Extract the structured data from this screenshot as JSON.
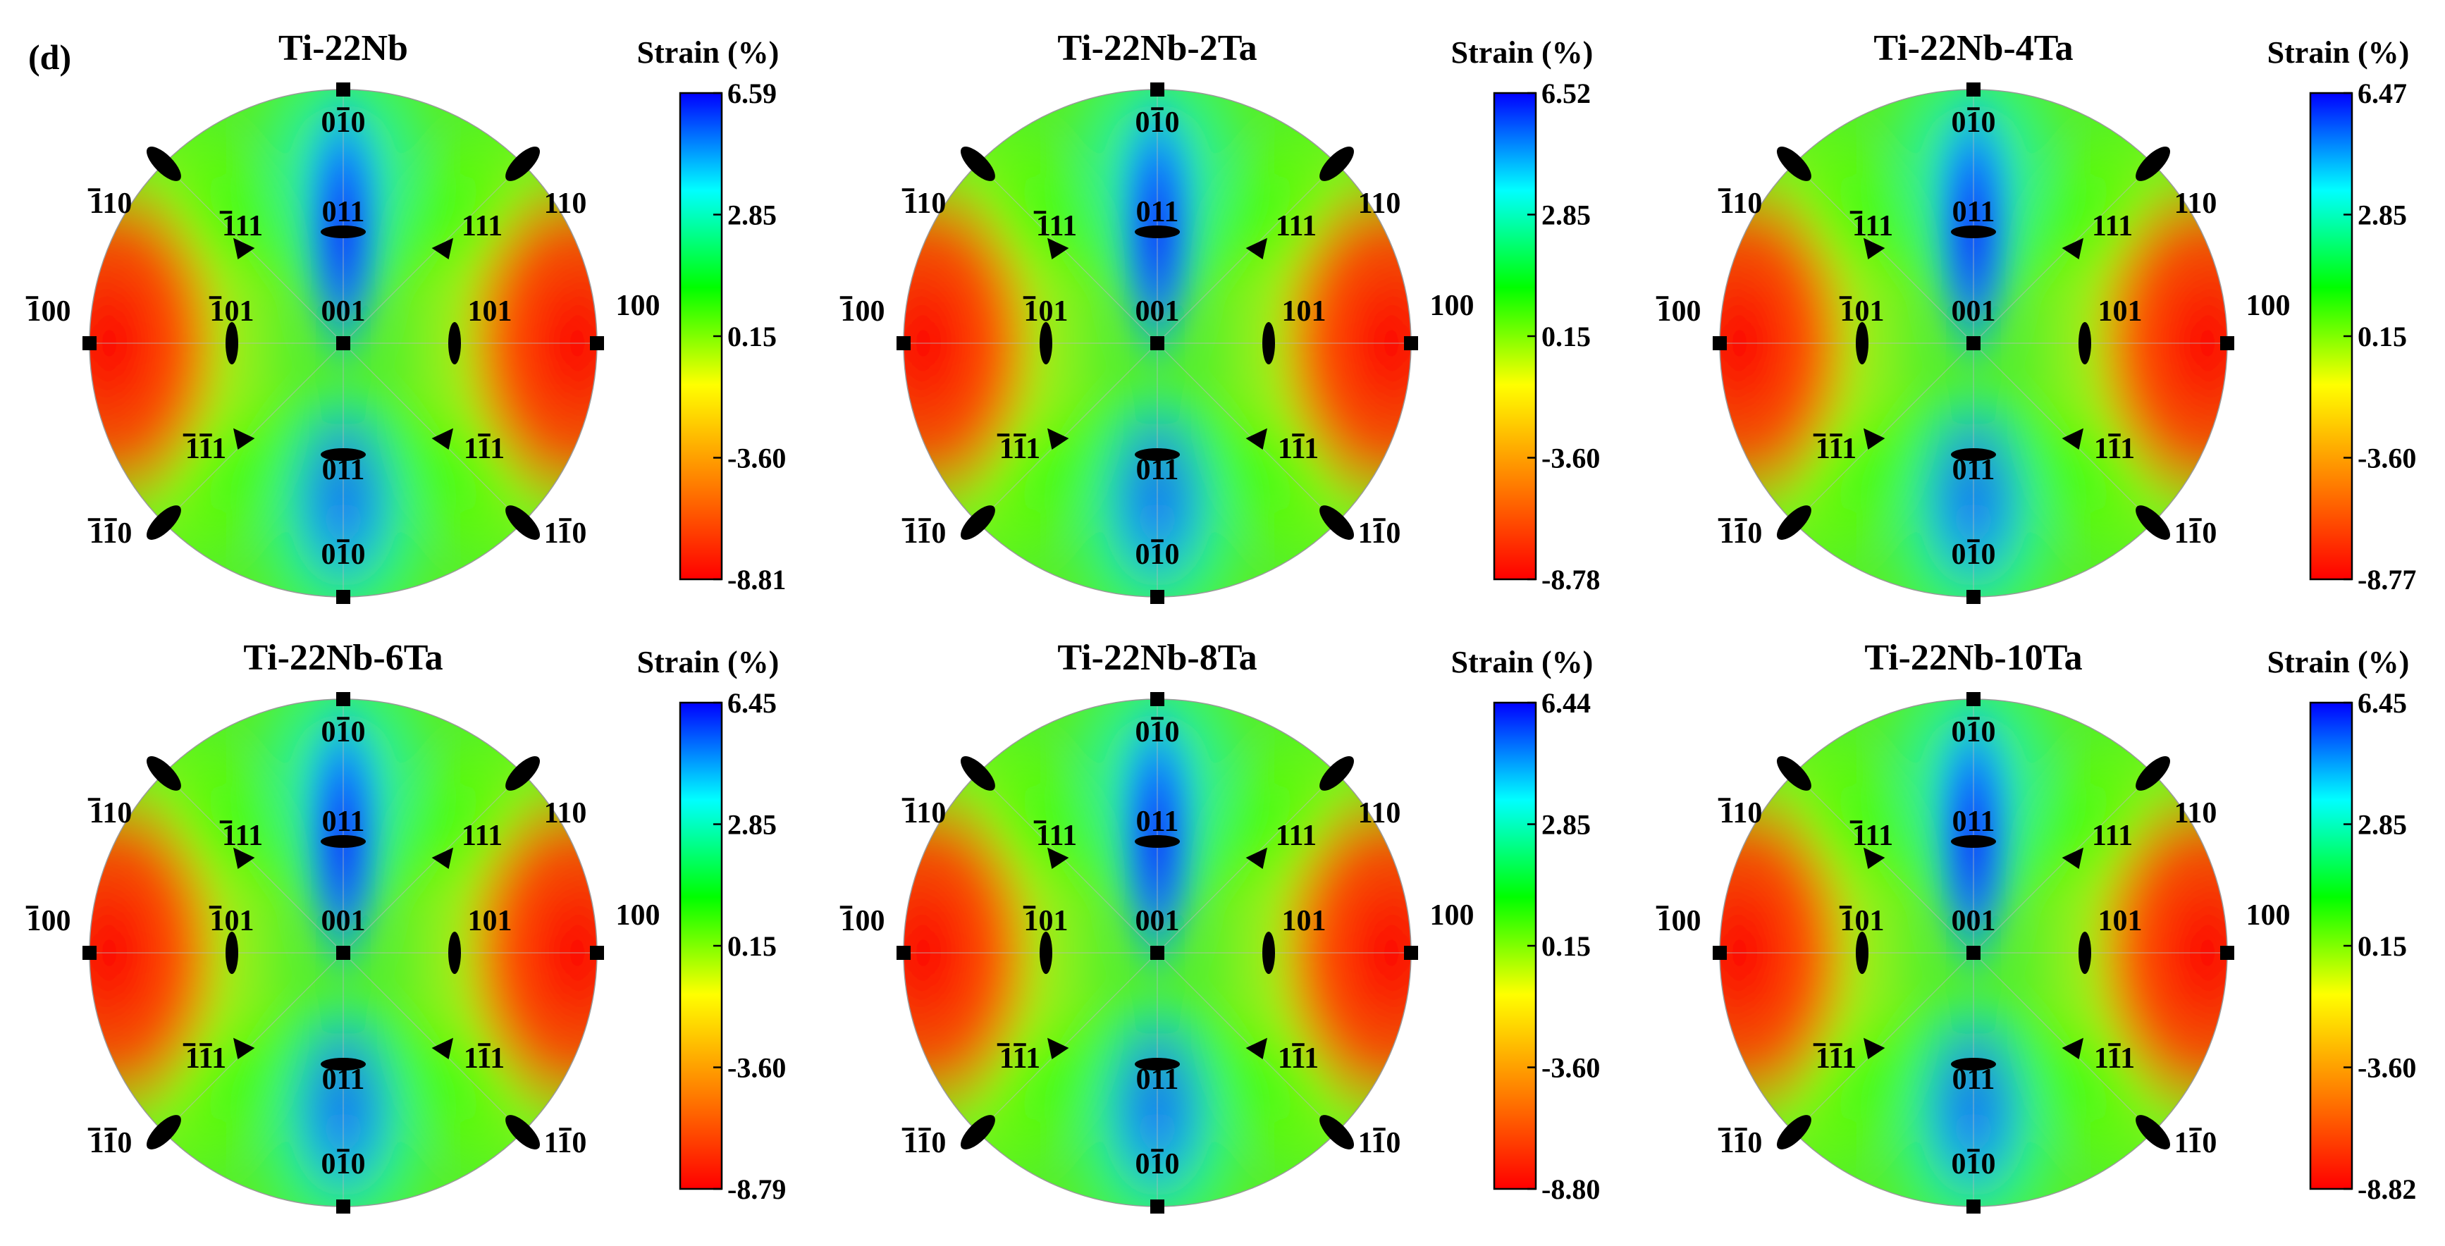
{
  "figure": {
    "panel_label": "(d)",
    "colorbar_title": "Strain (%)",
    "colormap": [
      "#ff0000",
      "#ff8000",
      "#ffff00",
      "#00ff00",
      "#00ffff",
      "#0000ff"
    ]
  },
  "chart_data": [
    {
      "type": "heatmap",
      "title": "Ti-22Nb",
      "colorbar": {
        "label": "Strain (%)",
        "min": -8.81,
        "max": 6.59,
        "ticks": [
          "6.59",
          "2.85",
          "0.15",
          "-3.60",
          "-8.81"
        ]
      }
    },
    {
      "type": "heatmap",
      "title": "Ti-22Nb-2Ta",
      "colorbar": {
        "label": "Strain (%)",
        "min": -8.78,
        "max": 6.52,
        "ticks": [
          "6.52",
          "2.85",
          "0.15",
          "-3.60",
          "-8.78"
        ]
      }
    },
    {
      "type": "heatmap",
      "title": "Ti-22Nb-4Ta",
      "colorbar": {
        "label": "Strain (%)",
        "min": -8.77,
        "max": 6.47,
        "ticks": [
          "6.47",
          "2.85",
          "0.15",
          "-3.60",
          "-8.77"
        ]
      }
    },
    {
      "type": "heatmap",
      "title": "Ti-22Nb-6Ta",
      "colorbar": {
        "label": "Strain (%)",
        "min": -8.79,
        "max": 6.45,
        "ticks": [
          "6.45",
          "2.85",
          "0.15",
          "-3.60",
          "-8.79"
        ]
      }
    },
    {
      "type": "heatmap",
      "title": "Ti-22Nb-8Ta",
      "colorbar": {
        "label": "Strain (%)",
        "min": -8.8,
        "max": 6.44,
        "ticks": [
          "6.44",
          "2.85",
          "0.15",
          "-3.60",
          "-8.80"
        ]
      }
    },
    {
      "type": "heatmap",
      "title": "Ti-22Nb-10Ta",
      "colorbar": {
        "label": "Strain (%)",
        "min": -8.82,
        "max": 6.45,
        "ticks": [
          "6.45",
          "2.85",
          "0.15",
          "-3.60",
          "-8.82"
        ]
      }
    }
  ],
  "poles": [
    {
      "key": "p010",
      "digits": "010",
      "bars": [
        1
      ]
    },
    {
      "key": "p011",
      "digits": "011",
      "bars": []
    },
    {
      "key": "pm111",
      "digits": "111",
      "bars": [
        0
      ]
    },
    {
      "key": "p111",
      "digits": "111",
      "bars": []
    },
    {
      "key": "pm110",
      "digits": "110",
      "bars": [
        0
      ]
    },
    {
      "key": "p110",
      "digits": "110",
      "bars": []
    },
    {
      "key": "pm100",
      "digits": "100",
      "bars": [
        0
      ]
    },
    {
      "key": "p100",
      "digits": "100",
      "bars": []
    },
    {
      "key": "pm101",
      "digits": "101",
      "bars": [
        0
      ]
    },
    {
      "key": "p001",
      "digits": "001",
      "bars": []
    },
    {
      "key": "p101",
      "digits": "101",
      "bars": []
    },
    {
      "key": "pm1m11",
      "digits": "111",
      "bars": [
        0,
        1
      ]
    },
    {
      "key": "p1m11",
      "digits": "111",
      "bars": [
        1
      ]
    },
    {
      "key": "p0m11",
      "digits": "011",
      "bars": [
        1
      ]
    },
    {
      "key": "pm1m10",
      "digits": "110",
      "bars": [
        0,
        1
      ]
    },
    {
      "key": "p1m10",
      "digits": "110",
      "bars": [
        1
      ]
    },
    {
      "key": "p0m10",
      "digits": "010",
      "bars": [
        1
      ]
    }
  ]
}
